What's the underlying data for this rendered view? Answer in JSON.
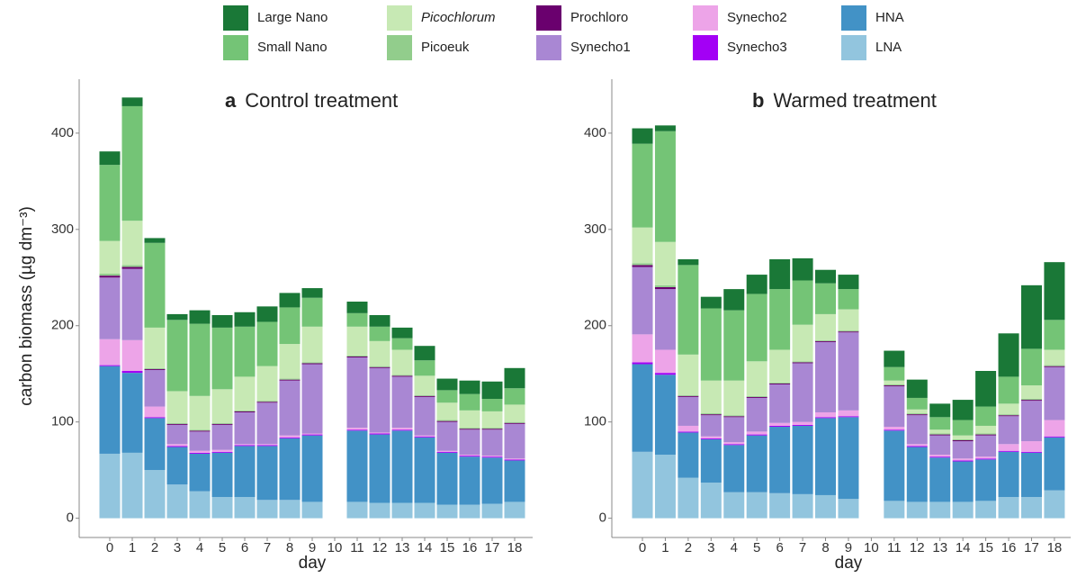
{
  "chart_data": [
    {
      "type": "bar",
      "stacked": true,
      "panel": "a",
      "title": "Control treatment",
      "xlabel": "day",
      "ylabel": "carbon biomass (µg dm⁻³)",
      "categories": [
        "0",
        "1",
        "2",
        "3",
        "4",
        "5",
        "6",
        "7",
        "8",
        "9",
        "10",
        "11",
        "12",
        "13",
        "14",
        "15",
        "16",
        "17",
        "18"
      ],
      "ylim": [
        -20,
        456
      ],
      "yticks": [
        0,
        100,
        200,
        300,
        400
      ],
      "series": [
        {
          "name": "Large Nano",
          "color": "#1a7837",
          "values": [
            14,
            9,
            5,
            6,
            14,
            13,
            15,
            16,
            15,
            10,
            null,
            12,
            12,
            11,
            15,
            12,
            14,
            18,
            21
          ]
        },
        {
          "name": "Small Nano",
          "color": "#74c476",
          "values": [
            79,
            119,
            88,
            74,
            75,
            64,
            52,
            46,
            38,
            30,
            null,
            14,
            15,
            12,
            16,
            13,
            17,
            13,
            17
          ]
        },
        {
          "name": "Picochlorum",
          "color": "#c7e9b4",
          "italic": true,
          "values": [
            34,
            46,
            42,
            33,
            35,
            35,
            35,
            36,
            36,
            37,
            null,
            30,
            26,
            26,
            20,
            18,
            18,
            17,
            18
          ]
        },
        {
          "name": "Picoeuk",
          "color": "#92cd8c",
          "values": [
            2,
            2,
            1,
            1,
            1,
            1,
            1,
            1,
            1,
            1,
            null,
            1,
            1,
            1,
            1,
            1,
            1,
            1,
            1
          ]
        },
        {
          "name": "Prochloro",
          "color": "#6a006e",
          "values": [
            2,
            2,
            1,
            1,
            1,
            1,
            1,
            1,
            1,
            1,
            null,
            1,
            1,
            1,
            1,
            1,
            1,
            1,
            1
          ]
        },
        {
          "name": "Synecho1",
          "color": "#a987d3",
          "values": [
            64,
            74,
            38,
            20,
            20,
            26,
            33,
            43,
            57,
            72,
            null,
            73,
            67,
            53,
            40,
            30,
            26,
            27,
            36
          ]
        },
        {
          "name": "Synecho2",
          "color": "#eda4e8",
          "values": [
            27,
            32,
            11,
            2,
            2,
            2,
            1,
            1,
            2,
            1,
            null,
            2,
            1,
            2,
            1,
            1,
            1,
            1,
            1
          ]
        },
        {
          "name": "Synecho3",
          "color": "#a300f5",
          "values": [
            1,
            2,
            1,
            1,
            1,
            1,
            1,
            1,
            1,
            1,
            null,
            1,
            1,
            1,
            1,
            1,
            1,
            1,
            1
          ]
        },
        {
          "name": "HNA",
          "color": "#4292c6",
          "values": [
            91,
            83,
            54,
            39,
            39,
            46,
            53,
            56,
            64,
            69,
            null,
            74,
            71,
            75,
            68,
            54,
            50,
            48,
            43
          ]
        },
        {
          "name": "LNA",
          "color": "#92c5de",
          "values": [
            67,
            68,
            50,
            35,
            28,
            22,
            22,
            19,
            19,
            17,
            null,
            17,
            16,
            16,
            16,
            14,
            14,
            15,
            17
          ]
        }
      ]
    },
    {
      "type": "bar",
      "stacked": true,
      "panel": "b",
      "title": "Warmed treatment",
      "xlabel": "day",
      "categories": [
        "0",
        "1",
        "2",
        "3",
        "4",
        "5",
        "6",
        "7",
        "8",
        "9",
        "10",
        "11",
        "12",
        "13",
        "14",
        "15",
        "16",
        "17",
        "18"
      ],
      "ylim": [
        -20,
        456
      ],
      "yticks": [
        0,
        100,
        200,
        300,
        400
      ],
      "series": [
        {
          "name": "Large Nano",
          "values": [
            16,
            6,
            6,
            12,
            22,
            20,
            31,
            23,
            14,
            15,
            null,
            17,
            19,
            14,
            21,
            37,
            45,
            66,
            60
          ]
        },
        {
          "name": "Small Nano",
          "values": [
            87,
            115,
            93,
            75,
            73,
            70,
            63,
            46,
            32,
            21,
            null,
            14,
            12,
            13,
            16,
            20,
            28,
            38,
            31
          ]
        },
        {
          "name": "Picochlorum",
          "values": [
            37,
            45,
            42,
            34,
            36,
            36,
            34,
            38,
            27,
            22,
            null,
            4,
            4,
            4,
            4,
            8,
            11,
            14,
            16
          ]
        },
        {
          "name": "Picoeuk",
          "values": [
            2,
            2,
            1,
            1,
            1,
            1,
            1,
            1,
            1,
            1,
            null,
            1,
            1,
            1,
            1,
            1,
            1,
            1,
            1
          ]
        },
        {
          "name": "Prochloro",
          "values": [
            2,
            2,
            1,
            1,
            1,
            1,
            1,
            1,
            1,
            1,
            null,
            1,
            1,
            1,
            1,
            1,
            1,
            1,
            1
          ]
        },
        {
          "name": "Synecho1",
          "values": [
            70,
            63,
            30,
            22,
            26,
            35,
            40,
            61,
            73,
            81,
            null,
            42,
            30,
            20,
            18,
            22,
            29,
            42,
            55
          ]
        },
        {
          "name": "Synecho2",
          "values": [
            29,
            24,
            6,
            2,
            2,
            3,
            3,
            3,
            5,
            6,
            null,
            3,
            2,
            2,
            2,
            2,
            7,
            11,
            17
          ]
        },
        {
          "name": "Synecho3",
          "values": [
            2,
            2,
            1,
            1,
            1,
            1,
            1,
            1,
            1,
            1,
            null,
            1,
            1,
            1,
            1,
            1,
            1,
            1,
            1
          ]
        },
        {
          "name": "HNA",
          "values": [
            91,
            83,
            47,
            45,
            49,
            59,
            69,
            71,
            80,
            85,
            null,
            73,
            57,
            46,
            42,
            43,
            47,
            46,
            55
          ]
        },
        {
          "name": "LNA",
          "values": [
            69,
            66,
            42,
            37,
            27,
            27,
            26,
            25,
            24,
            20,
            null,
            18,
            17,
            17,
            17,
            18,
            22,
            22,
            29
          ]
        }
      ]
    }
  ]
}
